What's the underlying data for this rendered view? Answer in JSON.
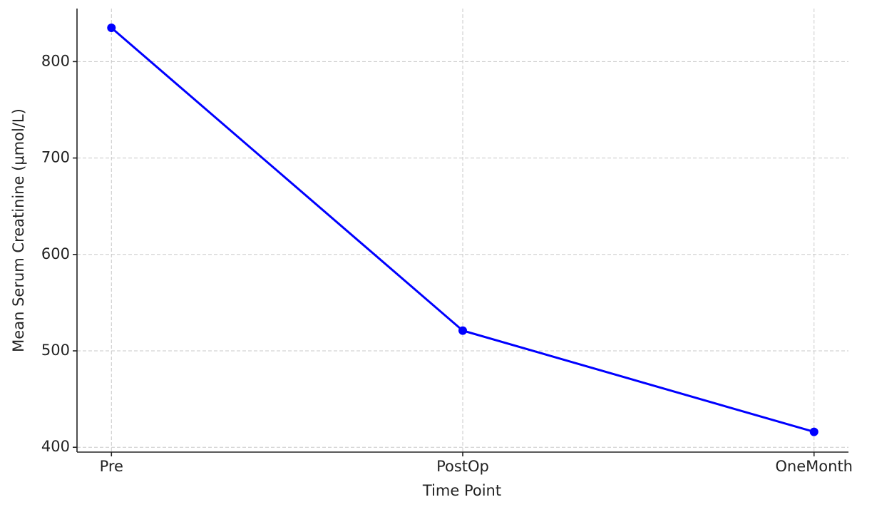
{
  "chart_data": {
    "type": "line",
    "x_label": "Time Point",
    "y_label": "Mean Serum Creatinine (μmol/L)",
    "categories": [
      "Pre",
      "PostOp",
      "OneMonth"
    ],
    "values": [
      835,
      521,
      416
    ],
    "color": "#0000ff",
    "ylim": [
      395,
      855
    ],
    "yticks": [
      400,
      500,
      600,
      700,
      800
    ],
    "grid": true
  }
}
